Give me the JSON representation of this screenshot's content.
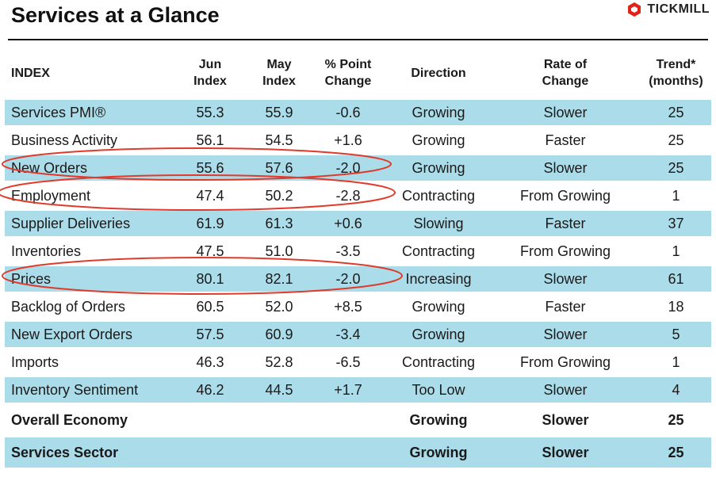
{
  "header": {
    "title": "Services at a Glance",
    "brand": "TICKMILL",
    "brand_color": "#e2231a"
  },
  "table": {
    "columns": [
      "INDEX",
      "Jun Index",
      "May Index",
      "% Point Change",
      "Direction",
      "Rate of Change",
      "Trend* (months)"
    ],
    "column_lines": [
      [
        "INDEX"
      ],
      [
        "Jun",
        "Index"
      ],
      [
        "May",
        "Index"
      ],
      [
        "% Point",
        "Change"
      ],
      [
        "Direction"
      ],
      [
        "Rate of",
        "Change"
      ],
      [
        "Trend*",
        "(months)"
      ]
    ],
    "rows": [
      {
        "index": "Services PMI®",
        "jun": "55.3",
        "may": "55.9",
        "change": "-0.6",
        "direction": "Growing",
        "rate": "Slower",
        "trend": "25",
        "shaded": true
      },
      {
        "index": "Business Activity",
        "jun": "56.1",
        "may": "54.5",
        "change": "+1.6",
        "direction": "Growing",
        "rate": "Faster",
        "trend": "25",
        "shaded": false
      },
      {
        "index": "New Orders",
        "jun": "55.6",
        "may": "57.6",
        "change": "-2.0",
        "direction": "Growing",
        "rate": "Slower",
        "trend": "25",
        "shaded": true
      },
      {
        "index": "Employment",
        "jun": "47.4",
        "may": "50.2",
        "change": "-2.8",
        "direction": "Contracting",
        "rate": "From Growing",
        "trend": "1",
        "shaded": false
      },
      {
        "index": "Supplier Deliveries",
        "jun": "61.9",
        "may": "61.3",
        "change": "+0.6",
        "direction": "Slowing",
        "rate": "Faster",
        "trend": "37",
        "shaded": true
      },
      {
        "index": "Inventories",
        "jun": "47.5",
        "may": "51.0",
        "change": "-3.5",
        "direction": "Contracting",
        "rate": "From Growing",
        "trend": "1",
        "shaded": false
      },
      {
        "index": "Prices",
        "jun": "80.1",
        "may": "82.1",
        "change": "-2.0",
        "direction": "Increasing",
        "rate": "Slower",
        "trend": "61",
        "shaded": true
      },
      {
        "index": "Backlog of Orders",
        "jun": "60.5",
        "may": "52.0",
        "change": "+8.5",
        "direction": "Growing",
        "rate": "Faster",
        "trend": "18",
        "shaded": false
      },
      {
        "index": "New Export Orders",
        "jun": "57.5",
        "may": "60.9",
        "change": "-3.4",
        "direction": "Growing",
        "rate": "Slower",
        "trend": "5",
        "shaded": true
      },
      {
        "index": "Imports",
        "jun": "46.3",
        "may": "52.8",
        "change": "-6.5",
        "direction": "Contracting",
        "rate": "From Growing",
        "trend": "1",
        "shaded": false
      },
      {
        "index": "Inventory Sentiment",
        "jun": "46.2",
        "may": "44.5",
        "change": "+1.7",
        "direction": "Too Low",
        "rate": "Slower",
        "trend": "4",
        "shaded": true
      }
    ],
    "summary_rows": [
      {
        "index": "Overall Economy",
        "jun": "",
        "may": "",
        "change": "",
        "direction": "Growing",
        "rate": "Slower",
        "trend": "25",
        "shaded": false
      },
      {
        "index": "Services Sector",
        "jun": "",
        "may": "",
        "change": "",
        "direction": "Growing",
        "rate": "Slower",
        "trend": "25",
        "shaded": true
      }
    ]
  },
  "highlights": {
    "circled_rows": [
      "New Orders",
      "Employment",
      "Prices"
    ],
    "color": "#e03a2b"
  },
  "colors": {
    "row_shade": "#abdcea",
    "rule": "#111111"
  }
}
